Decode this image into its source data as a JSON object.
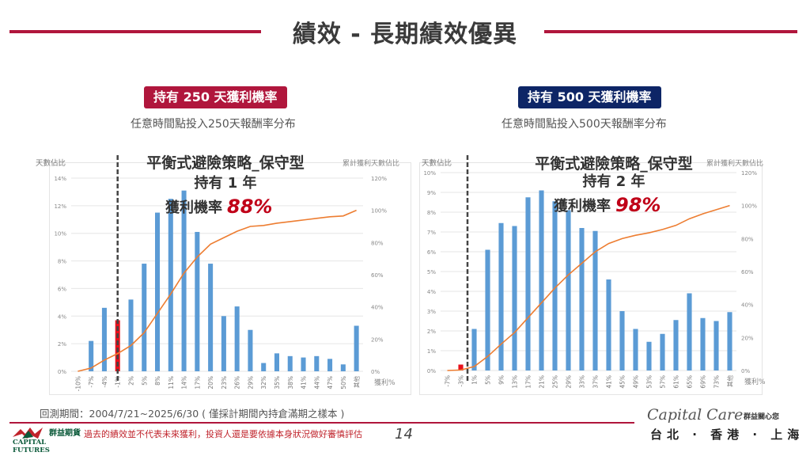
{
  "header": {
    "title": "績效 - 長期績效優異",
    "accent_color": "#b0163c"
  },
  "panels": [
    {
      "badge": "持有 250 天獲利機率",
      "badge_color": "#b0163c",
      "subtitle": "任意時間點投入250天報酬率分布",
      "overlay_title": "平衡式避險策略_保守型",
      "overlay_hold": "持有 1 年",
      "overlay_prob_label": "獲利機率",
      "overlay_prob_value": "88%"
    },
    {
      "badge": "持有 500 天獲利機率",
      "badge_color": "#0d2566",
      "subtitle": "任意時間點投入500天報酬率分布",
      "overlay_title": "平衡式避險策略_保守型",
      "overlay_hold": "持有 2 年",
      "overlay_prob_label": "獲利機率",
      "overlay_prob_value": "98%"
    }
  ],
  "chart_data": [
    {
      "type": "bar",
      "title": "任意時間點投入250天報酬率分布",
      "xlabel": "獲利%",
      "ylabel": "天數佔比",
      "y2label": "累計獲利天數佔比",
      "ylim": [
        0,
        14
      ],
      "yticks": [
        "0%",
        "2%",
        "4%",
        "6%",
        "8%",
        "10%",
        "12%",
        "14%"
      ],
      "y2lim": [
        0,
        120
      ],
      "y2ticks": [
        "0%",
        "20%",
        "40%",
        "60%",
        "80%",
        "100%",
        "120%"
      ],
      "categories": [
        "-10%",
        "-7%",
        "-4%",
        "-1%",
        "2%",
        "5%",
        "8%",
        "11%",
        "14%",
        "17%",
        "20%",
        "23%",
        "26%",
        "29%",
        "32%",
        "35%",
        "38%",
        "41%",
        "44%",
        "47%",
        "50%",
        "其他"
      ],
      "series": [
        {
          "name": "天數佔比",
          "type": "bar",
          "axis": "left",
          "color": "#5b9bd5",
          "values": [
            0,
            2.2,
            4.6,
            3.7,
            5.2,
            7.8,
            11.5,
            12.5,
            13.1,
            10.1,
            7.8,
            4.0,
            4.7,
            3.0,
            0.6,
            1.3,
            1.1,
            1.0,
            1.1,
            0.9,
            0.5,
            3.3
          ]
        },
        {
          "name": "累計獲利天數佔比",
          "type": "line",
          "axis": "right",
          "color": "#ed7d31",
          "values": [
            0,
            2,
            7,
            11,
            16,
            24,
            36,
            48,
            61,
            71,
            79,
            83,
            87,
            90,
            90.6,
            92,
            93,
            94,
            95,
            96,
            96.5,
            100
          ]
        }
      ],
      "highlight_index": 3,
      "highlight_color": "#e8101c",
      "grid": true
    },
    {
      "type": "bar",
      "title": "任意時間點投入500天報酬率分布",
      "xlabel": "獲利%",
      "ylabel": "天數佔比",
      "y2label": "累計獲利天數佔比",
      "ylim": [
        0,
        10
      ],
      "yticks": [
        "0%",
        "1%",
        "2%",
        "3%",
        "4%",
        "5%",
        "6%",
        "7%",
        "8%",
        "9%",
        "10%"
      ],
      "y2lim": [
        0,
        120
      ],
      "y2ticks": [
        "0%",
        "20%",
        "40%",
        "60%",
        "80%",
        "100%",
        "120%"
      ],
      "categories": [
        "-7%",
        "-3%",
        "1%",
        "5%",
        "9%",
        "13%",
        "17%",
        "21%",
        "25%",
        "29%",
        "33%",
        "37%",
        "41%",
        "45%",
        "49%",
        "53%",
        "57%",
        "61%",
        "65%",
        "69%",
        "73%",
        "其他"
      ],
      "series": [
        {
          "name": "天數佔比",
          "type": "bar",
          "axis": "left",
          "color": "#5b9bd5",
          "values": [
            0,
            0.3,
            2.1,
            6.1,
            7.45,
            7.3,
            8.75,
            9.1,
            8.55,
            8.1,
            7.2,
            7.05,
            4.6,
            3.0,
            2.1,
            1.45,
            1.85,
            2.55,
            3.9,
            2.65,
            2.5,
            2.95
          ]
        },
        {
          "name": "累計獲利天數佔比",
          "type": "line",
          "axis": "right",
          "color": "#ed7d31",
          "values": [
            0,
            0.3,
            2.4,
            8.5,
            16,
            23,
            32,
            41,
            50,
            58,
            65,
            72,
            77,
            80,
            82,
            83.5,
            85.5,
            88,
            92,
            95,
            97.5,
            100
          ]
        }
      ],
      "highlight_index": 1,
      "highlight_color": "#e8101c",
      "grid": true
    }
  ],
  "footer": {
    "backtest_note": "回測期間：2004/7/21~2025/6/30 ( 僅採計期間內持倉滿期之樣本 )",
    "disclaimer": "過去的績效並不代表未來獲利，投資人還是要依據本身狀況做好審慎評估",
    "page_number": "14",
    "company_cn": "群益期貨",
    "company_en": "CAPITAL FUTURES",
    "brand": "Capital Care",
    "brand_cn": "群益關心您",
    "cities": "台北 · 香港 · 上海"
  }
}
